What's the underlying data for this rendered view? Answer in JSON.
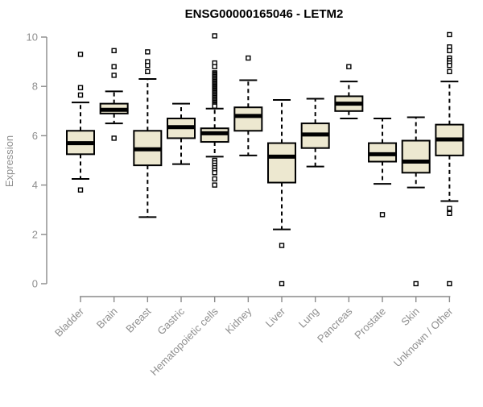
{
  "chart_data": {
    "type": "boxplot",
    "title": "ENSG00000165046 - LETM2",
    "xlabel": "",
    "ylabel": "Expression",
    "ylim": [
      0,
      10
    ],
    "yticks": [
      0,
      2,
      4,
      6,
      8,
      10
    ],
    "grid": false,
    "legend": "none",
    "categories": [
      "Bladder",
      "Brain",
      "Breast",
      "Gastric",
      "Hematopoietic cells",
      "Kidney",
      "Liver",
      "Lung",
      "Pancreas",
      "Prostate",
      "Skin",
      "Unknown / Other"
    ],
    "series": [
      {
        "name": "Bladder",
        "whisker_low": 4.25,
        "q1": 5.25,
        "median": 5.7,
        "q3": 6.2,
        "whisker_high": 7.35,
        "outliers": [
          9.3,
          7.95,
          7.65,
          3.8
        ]
      },
      {
        "name": "Brain",
        "whisker_low": 6.5,
        "q1": 6.9,
        "median": 7.05,
        "q3": 7.3,
        "whisker_high": 7.8,
        "outliers": [
          9.45,
          8.8,
          8.45,
          5.9
        ]
      },
      {
        "name": "Breast",
        "whisker_low": 2.7,
        "q1": 4.8,
        "median": 5.45,
        "q3": 6.2,
        "whisker_high": 8.3,
        "outliers": [
          9.4,
          9.0,
          8.85,
          8.6
        ]
      },
      {
        "name": "Gastric",
        "whisker_low": 4.85,
        "q1": 5.9,
        "median": 6.35,
        "q3": 6.7,
        "whisker_high": 7.3,
        "outliers": []
      },
      {
        "name": "Hematopoietic cells",
        "whisker_low": 5.15,
        "q1": 5.75,
        "median": 6.1,
        "q3": 6.3,
        "whisker_high": 7.1,
        "outliers": [
          10.05,
          8.95,
          8.8,
          8.55,
          8.5,
          8.45,
          8.4,
          8.35,
          8.3,
          8.25,
          8.2,
          8.15,
          8.1,
          8.05,
          8.0,
          7.95,
          7.9,
          7.85,
          7.8,
          7.75,
          7.7,
          7.65,
          7.6,
          7.55,
          7.5,
          7.45,
          7.4,
          7.35,
          7.3,
          7.25,
          7.2,
          5.0,
          4.9,
          4.8,
          4.7,
          4.6,
          4.5,
          4.25,
          4.0
        ]
      },
      {
        "name": "Kidney",
        "whisker_low": 5.2,
        "q1": 6.2,
        "median": 6.8,
        "q3": 7.15,
        "whisker_high": 8.25,
        "outliers": [
          9.15
        ]
      },
      {
        "name": "Liver",
        "whisker_low": 2.2,
        "q1": 4.1,
        "median": 5.15,
        "q3": 5.7,
        "whisker_high": 7.45,
        "outliers": [
          1.55,
          0.0
        ]
      },
      {
        "name": "Lung",
        "whisker_low": 4.75,
        "q1": 5.5,
        "median": 6.05,
        "q3": 6.5,
        "whisker_high": 7.5,
        "outliers": []
      },
      {
        "name": "Pancreas",
        "whisker_low": 6.7,
        "q1": 7.0,
        "median": 7.3,
        "q3": 7.6,
        "whisker_high": 8.2,
        "outliers": [
          8.8
        ]
      },
      {
        "name": "Prostate",
        "whisker_low": 4.05,
        "q1": 4.95,
        "median": 5.25,
        "q3": 5.7,
        "whisker_high": 6.7,
        "outliers": [
          2.8
        ]
      },
      {
        "name": "Skin",
        "whisker_low": 3.9,
        "q1": 4.5,
        "median": 4.95,
        "q3": 5.8,
        "whisker_high": 6.75,
        "outliers": [
          0.0
        ]
      },
      {
        "name": "Unknown / Other",
        "whisker_low": 3.35,
        "q1": 5.2,
        "median": 5.85,
        "q3": 6.45,
        "whisker_high": 8.2,
        "outliers": [
          10.1,
          9.6,
          9.45,
          9.15,
          9.05,
          8.95,
          8.85,
          8.6,
          3.05,
          2.85,
          0.0
        ]
      }
    ],
    "colors": {
      "box_fill": "#EDE8D0",
      "box_stroke": "#000000",
      "median": "#000000",
      "whisker": "#000000",
      "outlier_stroke": "#000000",
      "outlier_fill": "#ffffff",
      "axis": "#8a8a8a",
      "tick_label": "#8f8f8f",
      "title": "#000000"
    }
  }
}
